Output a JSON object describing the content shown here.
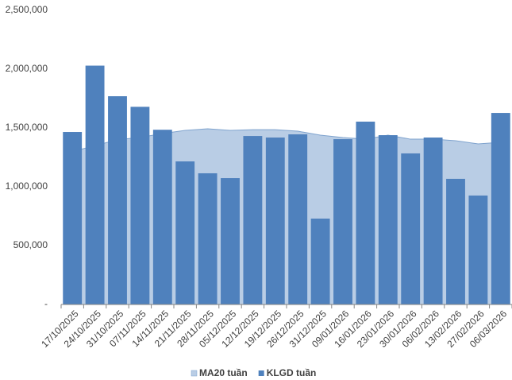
{
  "chart_data": {
    "type": "bar",
    "categories": [
      "17/10/2025",
      "24/10/2025",
      "31/10/2025",
      "07/11/2025",
      "14/11/2025",
      "21/11/2025",
      "28/11/2025",
      "05/12/2025",
      "12/12/2025",
      "19/12/2025",
      "26/12/2025",
      "31/12/2025",
      "09/01/2026",
      "16/01/2026",
      "23/01/2026",
      "30/01/2026",
      "06/02/2026",
      "13/02/2026",
      "27/02/2026",
      "06/03/2026"
    ],
    "series": [
      {
        "name": "MA20 tuần",
        "type": "area",
        "color": "#b9cde5",
        "line_color": "#7fa3ce",
        "values": [
          1300000,
          1350000,
          1400000,
          1420000,
          1453000,
          1480000,
          1493000,
          1480000,
          1486000,
          1486000,
          1473000,
          1439000,
          1419000,
          1405000,
          1439000,
          1405000,
          1405000,
          1392000,
          1365000,
          1378000
        ]
      },
      {
        "name": "KLGD tuần",
        "type": "bar",
        "color": "#4f81bd",
        "values": [
          1466000,
          2030000,
          1770000,
          1680000,
          1485000,
          1216000,
          1115000,
          1074000,
          1432000,
          1419000,
          1446000,
          730000,
          1405000,
          1554000,
          1439000,
          1284000,
          1419000,
          1068000,
          926000,
          1628000
        ]
      }
    ],
    "ylim": [
      0,
      2500000
    ],
    "yticks": [
      {
        "value": 0,
        "label": "-"
      },
      {
        "value": 500000,
        "label": "500,000"
      },
      {
        "value": 1000000,
        "label": "1,000,000"
      },
      {
        "value": 1500000,
        "label": "1,500,000"
      },
      {
        "value": 2000000,
        "label": "2,000,000"
      },
      {
        "value": 2500000,
        "label": "2,500,000"
      }
    ],
    "grid": false,
    "legend": "bottom"
  }
}
